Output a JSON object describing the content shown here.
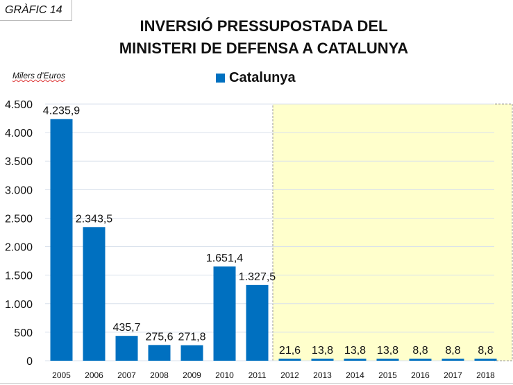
{
  "badge": "GRÀFIC 14",
  "chart_data": {
    "type": "bar",
    "title": "INVERSIÓ PRESSUPOSTADA DEL MINISTERI DE DEFENSA A CATALUNYA",
    "title_lines": [
      "INVERSIÓ PRESSUPOSTADA DEL",
      "MINISTERI DE DEFENSA A CATALUNYA"
    ],
    "ylabel": "Milers d’Euros",
    "xlabel": "",
    "ylim": [
      0,
      4500
    ],
    "yticks": [
      0,
      500,
      1000,
      1500,
      2000,
      2500,
      3000,
      3500,
      4000,
      4500
    ],
    "ytick_labels": [
      "0",
      "500",
      "1.000",
      "1.500",
      "2.000",
      "2.500",
      "3.000",
      "3.500",
      "4.000",
      "4.500"
    ],
    "grid": true,
    "legend_position": "top-center",
    "categories": [
      "2005",
      "2006",
      "2007",
      "2008",
      "2009",
      "2010",
      "2011",
      "2012",
      "2013",
      "2014",
      "2015",
      "2016",
      "2017",
      "2018"
    ],
    "series": [
      {
        "name": "Catalunya",
        "color": "#0070c0",
        "values": [
          4235.9,
          2343.5,
          435.7,
          275.6,
          271.8,
          1651.4,
          1327.5,
          21.6,
          13.8,
          13.8,
          13.8,
          8.8,
          8.8,
          8.8
        ],
        "labels": [
          "4.235,9",
          "2.343,5",
          "435,7",
          "275,6",
          "271,8",
          "1.651,4",
          "1.327,5",
          "21,6",
          "13,8",
          "13,8",
          "13,8",
          "8,8",
          "8,8",
          "8,8"
        ]
      }
    ],
    "highlight": {
      "from_category": "2012",
      "to_category": "2018",
      "color": "#ffffcc"
    }
  }
}
